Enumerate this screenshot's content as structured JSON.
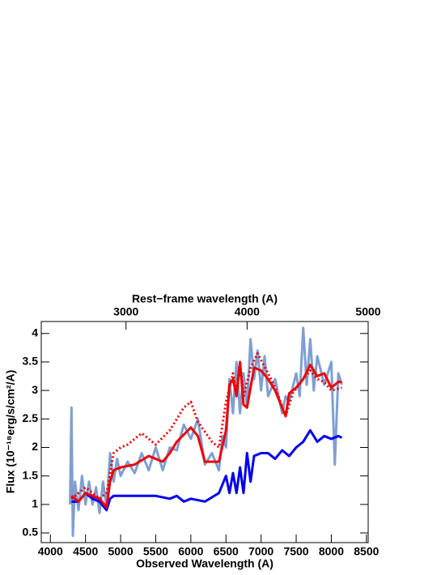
{
  "chart_data": {
    "type": "line",
    "xlabel": "Observed Wavelength (A)",
    "x2label": "Rest−frame wavelength (A)",
    "ylabel": "Flux (10⁻¹⁸erg/s/cm²/A)",
    "xlim": [
      3870,
      8525
    ],
    "xticks": [
      4000,
      4500,
      5000,
      5500,
      6000,
      6500,
      7000,
      7500,
      8000,
      8500
    ],
    "x2lim": [
      2300,
      5000
    ],
    "x2ticks": [
      3000,
      4000,
      5000
    ],
    "ylim": [
      0.33,
      4.21
    ],
    "yticks": [
      0.5,
      1,
      1.5,
      2,
      2.5,
      3,
      3.5,
      4
    ],
    "series": [
      {
        "color": "#7f9fd2",
        "width": 3,
        "dash": "solid",
        "x": [
          4280,
          4300,
          4320,
          4350,
          4400,
          4450,
          4500,
          4550,
          4600,
          4650,
          4700,
          4750,
          4800,
          4850,
          4900,
          4950,
          5000,
          5100,
          5200,
          5300,
          5400,
          5500,
          5600,
          5700,
          5800,
          5900,
          6000,
          6100,
          6200,
          6300,
          6400,
          6450,
          6500,
          6550,
          6600,
          6650,
          6700,
          6750,
          6800,
          6850,
          6900,
          6950,
          7000,
          7050,
          7100,
          7200,
          7300,
          7350,
          7400,
          7500,
          7550,
          7600,
          7650,
          7700,
          7750,
          7800,
          7900,
          8000,
          8050,
          8100,
          8150
        ],
        "values": [
          1.0,
          2.7,
          0.45,
          1.4,
          0.9,
          1.5,
          1.0,
          1.4,
          1.0,
          1.3,
          0.85,
          1.4,
          0.95,
          1.9,
          1.4,
          1.8,
          1.5,
          1.75,
          1.55,
          1.9,
          1.6,
          2.0,
          1.6,
          2.0,
          1.95,
          2.4,
          2.15,
          2.5,
          1.7,
          1.9,
          1.6,
          2.2,
          2.0,
          3.2,
          2.6,
          3.5,
          2.6,
          3.3,
          2.7,
          3.9,
          3.2,
          3.7,
          3.0,
          3.6,
          2.9,
          3.2,
          2.6,
          2.9,
          2.8,
          3.3,
          2.9,
          4.1,
          3.1,
          3.9,
          3.0,
          3.6,
          3.1,
          3.5,
          1.7,
          3.3,
          3.1
        ]
      },
      {
        "color": "#0000ee",
        "width": 3,
        "dash": "solid",
        "x": [
          4300,
          4400,
          4500,
          4600,
          4700,
          4800,
          4850,
          4900,
          5000,
          5500,
          5700,
          5800,
          5900,
          6000,
          6200,
          6400,
          6500,
          6550,
          6600,
          6650,
          6700,
          6750,
          6800,
          6850,
          6900,
          7000,
          7100,
          7200,
          7300,
          7400,
          7500,
          7600,
          7700,
          7800,
          7900,
          8000,
          8100,
          8150
        ],
        "values": [
          1.05,
          1.05,
          1.2,
          1.1,
          1.05,
          0.9,
          1.1,
          1.15,
          1.15,
          1.15,
          1.1,
          1.15,
          1.05,
          1.1,
          1.05,
          1.2,
          1.5,
          1.2,
          1.55,
          1.2,
          1.65,
          1.2,
          1.9,
          1.4,
          1.85,
          1.9,
          1.9,
          1.8,
          1.95,
          1.85,
          2.0,
          2.1,
          2.3,
          2.1,
          2.2,
          2.15,
          2.2,
          2.17
        ]
      },
      {
        "color": "#ee0000",
        "width": 3,
        "dash": "dotted",
        "x": [
          4300,
          4500,
          4700,
          4800,
          4900,
          5000,
          5100,
          5300,
          5500,
          5700,
          5900,
          6000,
          6100,
          6300,
          6400,
          6500,
          6600,
          6650,
          6700,
          6750,
          6850,
          6950,
          7100,
          7200,
          7350,
          7450,
          7600,
          7700,
          7800,
          7900,
          8000,
          8150
        ],
        "values": [
          1.1,
          1.3,
          1.1,
          1.2,
          1.9,
          2.0,
          2.05,
          2.25,
          2.05,
          2.3,
          2.7,
          2.8,
          2.45,
          2.1,
          2.0,
          2.8,
          3.3,
          3.0,
          3.5,
          2.9,
          3.4,
          3.65,
          3.3,
          3.05,
          2.55,
          2.95,
          3.2,
          3.35,
          3.2,
          3.15,
          3.0,
          3.05
        ]
      },
      {
        "color": "#ee0000",
        "width": 3,
        "dash": "solid",
        "x": [
          4300,
          4400,
          4500,
          4600,
          4700,
          4800,
          4850,
          4900,
          5000,
          5200,
          5400,
          5600,
          5700,
          5800,
          6000,
          6100,
          6200,
          6300,
          6400,
          6500,
          6550,
          6600,
          6650,
          6700,
          6750,
          6800,
          6900,
          7000,
          7100,
          7200,
          7300,
          7350,
          7400,
          7500,
          7600,
          7700,
          7800,
          7900,
          8000,
          8100,
          8150
        ],
        "values": [
          1.15,
          1.05,
          1.2,
          1.15,
          1.1,
          0.95,
          1.4,
          1.6,
          1.65,
          1.7,
          1.85,
          1.75,
          1.9,
          2.1,
          2.35,
          2.2,
          1.75,
          1.75,
          1.75,
          2.3,
          3.1,
          3.2,
          2.9,
          3.5,
          2.75,
          2.7,
          3.4,
          3.35,
          3.2,
          3.0,
          2.7,
          2.55,
          2.95,
          3.05,
          3.2,
          3.45,
          3.25,
          3.3,
          3.05,
          3.15,
          3.15
        ]
      }
    ]
  }
}
